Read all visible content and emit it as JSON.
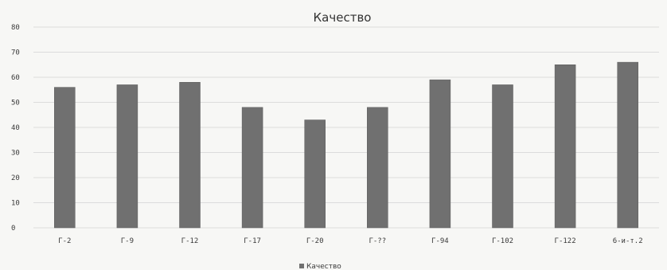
{
  "chart_data": {
    "type": "bar",
    "title": "Качество",
    "categories": [
      "Г-2",
      "Г-9",
      "Г-12",
      "Г-17",
      "Г-20",
      "Г-??",
      "Г-94",
      "Г-102",
      "Г-122",
      "6-и-т.2"
    ],
    "series": [
      {
        "name": "Качество",
        "values": [
          56,
          57,
          58,
          48,
          43,
          48,
          59,
          57,
          65,
          66
        ],
        "color": "#707070"
      }
    ],
    "yticks": [
      "0",
      "10",
      "20",
      "30",
      "40",
      "50",
      "60",
      "70",
      "80"
    ],
    "ylim": [
      0,
      80
    ],
    "grid": true,
    "legend_position": "bottom-center"
  }
}
